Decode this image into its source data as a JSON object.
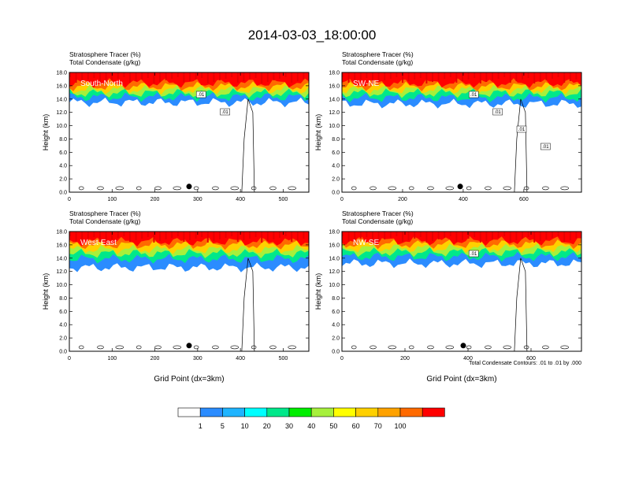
{
  "figure_title": "2014-03-03_18:00:00",
  "colorbar": {
    "labels": [
      "1",
      "5",
      "10",
      "20",
      "30",
      "40",
      "50",
      "60",
      "70",
      "100"
    ],
    "colors": [
      "#ffffff",
      "#2b8cff",
      "#1fb4ff",
      "#00ffff",
      "#00e88a",
      "#00ee00",
      "#a6f03c",
      "#ffff00",
      "#ffd000",
      "#ffa200",
      "#ff6a00",
      "#ff0000"
    ]
  },
  "contour_note": "Total Condensate Contours: .01 to .01 by .000",
  "chart_data": [
    {
      "type": "heatmap",
      "panel": "South-North",
      "title": "Stratosphere Tracer   (%)",
      "subtitle": "Total Condensate   (g/kg)",
      "ylabel": "Height (km)",
      "xlabel": "",
      "xlim": [
        0,
        560
      ],
      "ylim": [
        0,
        18
      ],
      "x_ticks": [
        "0",
        "100",
        "200",
        "300",
        "400",
        "500"
      ],
      "y_ticks": [
        "0.0",
        "2.0",
        "4.0",
        "6.0",
        "8.0",
        "10.0",
        "12.0",
        "14.0",
        "16.0",
        "18.0"
      ],
      "contour_labels": [
        ".01",
        ".01"
      ],
      "marker_x": 280,
      "tracer_layers": [
        {
          "level": "100",
          "base_km": 16.4
        },
        {
          "level": "70",
          "base_km": 15.9
        },
        {
          "level": "50",
          "base_km": 15.4
        },
        {
          "level": "30",
          "base_km": 14.9
        },
        {
          "level": "10",
          "base_km": 14.3
        },
        {
          "level": "1",
          "base_km": 13.5
        }
      ]
    },
    {
      "type": "heatmap",
      "panel": "SW-NE",
      "title": "Stratosphere Tracer   (%)",
      "subtitle": "Total Condensate   (g/kg)",
      "ylabel": "Height (km)",
      "xlabel": "",
      "xlim": [
        0,
        790
      ],
      "ylim": [
        0,
        18
      ],
      "x_ticks": [
        "0",
        "200",
        "400",
        "600"
      ],
      "y_ticks": [
        "0.0",
        "2.0",
        "4.0",
        "6.0",
        "8.0",
        "10.0",
        "12.0",
        "14.0",
        "16.0",
        "18.0"
      ],
      "contour_labels": [
        ".01",
        ".01",
        ".01",
        ".01"
      ],
      "marker_x": 390,
      "tracer_layers": [
        {
          "level": "100",
          "base_km": 16.4
        },
        {
          "level": "70",
          "base_km": 15.9
        },
        {
          "level": "50",
          "base_km": 15.4
        },
        {
          "level": "30",
          "base_km": 14.9
        },
        {
          "level": "10",
          "base_km": 14.2
        },
        {
          "level": "1",
          "base_km": 13.3
        }
      ]
    },
    {
      "type": "heatmap",
      "panel": "West-East",
      "title": "Stratosphere Tracer   (%)",
      "subtitle": "Total Condensate   (g/kg)",
      "ylabel": "Height (km)",
      "xlabel": "Grid Point (dx=3km)",
      "xlim": [
        0,
        560
      ],
      "ylim": [
        0,
        18
      ],
      "x_ticks": [
        "0",
        "100",
        "200",
        "300",
        "400",
        "500"
      ],
      "y_ticks": [
        "0.0",
        "2.0",
        "4.0",
        "6.0",
        "8.0",
        "10.0",
        "12.0",
        "14.0",
        "16.0",
        "18.0"
      ],
      "contour_labels": [],
      "marker_x": 280,
      "tracer_layers": [
        {
          "level": "100",
          "base_km": 16.5
        },
        {
          "level": "70",
          "base_km": 16.0
        },
        {
          "level": "50",
          "base_km": 15.3
        },
        {
          "level": "30",
          "base_km": 14.7
        },
        {
          "level": "10",
          "base_km": 13.9
        },
        {
          "level": "1",
          "base_km": 12.6
        }
      ]
    },
    {
      "type": "heatmap",
      "panel": "NW-SE",
      "title": "Stratosphere Tracer   (%)",
      "subtitle": "Total Condensate   (g/kg)",
      "ylabel": "Height (km)",
      "xlabel": "Grid Point (dx=3km)",
      "xlim": [
        0,
        760
      ],
      "ylim": [
        0,
        18
      ],
      "x_ticks": [
        "0",
        "200",
        "400",
        "600"
      ],
      "y_ticks": [
        "0.0",
        "2.0",
        "4.0",
        "6.0",
        "8.0",
        "10.0",
        "12.0",
        "14.0",
        "16.0",
        "18.0"
      ],
      "contour_labels": [
        ".01"
      ],
      "marker_x": 385,
      "tracer_layers": [
        {
          "level": "100",
          "base_km": 16.6
        },
        {
          "level": "70",
          "base_km": 16.1
        },
        {
          "level": "50",
          "base_km": 15.5
        },
        {
          "level": "30",
          "base_km": 14.9
        },
        {
          "level": "10",
          "base_km": 14.2
        },
        {
          "level": "1",
          "base_km": 13.2
        }
      ]
    }
  ]
}
